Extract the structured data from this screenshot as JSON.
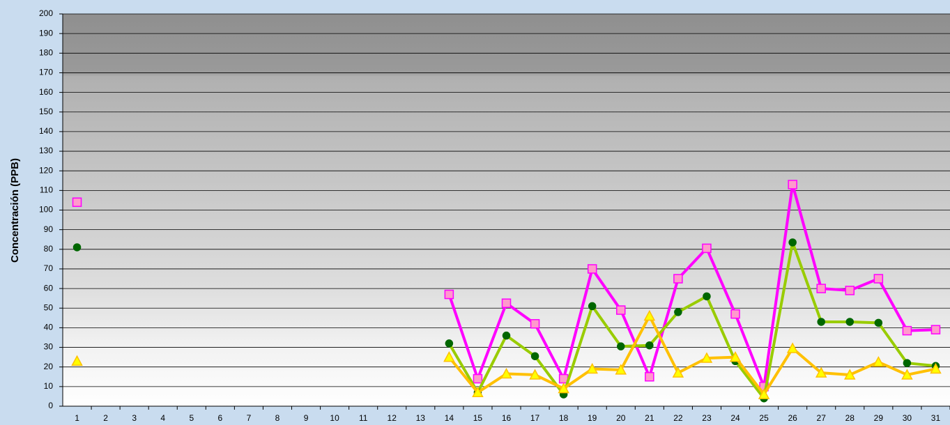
{
  "chart_data": {
    "type": "line",
    "y_label": "Concentración (PPB)",
    "categories": [
      1,
      2,
      3,
      4,
      5,
      6,
      7,
      8,
      9,
      10,
      11,
      12,
      13,
      14,
      15,
      16,
      17,
      18,
      19,
      20,
      21,
      22,
      23,
      24,
      25,
      26,
      27,
      28,
      29,
      30,
      31
    ],
    "series": [
      {
        "color": "#ff00ff",
        "marker": "square",
        "marker_fill": "#ff99cc",
        "values": [
          104,
          null,
          null,
          null,
          null,
          null,
          null,
          null,
          null,
          null,
          null,
          null,
          null,
          57,
          14,
          52.5,
          42,
          14,
          70,
          49,
          15,
          65,
          80.5,
          47,
          10,
          113,
          60,
          59,
          65,
          38.5,
          39
        ]
      },
      {
        "color": "#99cc00",
        "marker": "circle",
        "marker_fill": "#006600",
        "values": [
          81,
          null,
          null,
          null,
          null,
          null,
          null,
          null,
          null,
          null,
          null,
          null,
          null,
          32,
          7,
          36,
          25.5,
          6,
          51,
          30.5,
          31,
          48,
          56,
          23,
          4,
          83.5,
          43,
          43,
          42.5,
          22,
          20.5
        ]
      },
      {
        "color": "#ffc000",
        "marker": "triangle",
        "marker_fill": "#ffff00",
        "values": [
          23,
          null,
          null,
          null,
          null,
          null,
          null,
          null,
          null,
          null,
          null,
          null,
          null,
          25,
          7,
          16.5,
          16,
          9,
          19,
          18.5,
          46,
          17,
          24.5,
          25,
          6,
          29.5,
          17,
          16,
          22.5,
          16,
          19
        ]
      }
    ],
    "ylim": [
      0,
      200
    ],
    "yticks": [
      0,
      10,
      20,
      30,
      40,
      50,
      60,
      70,
      80,
      90,
      100,
      110,
      120,
      130,
      140,
      150,
      160,
      170,
      180,
      190,
      200
    ],
    "grid": true
  }
}
